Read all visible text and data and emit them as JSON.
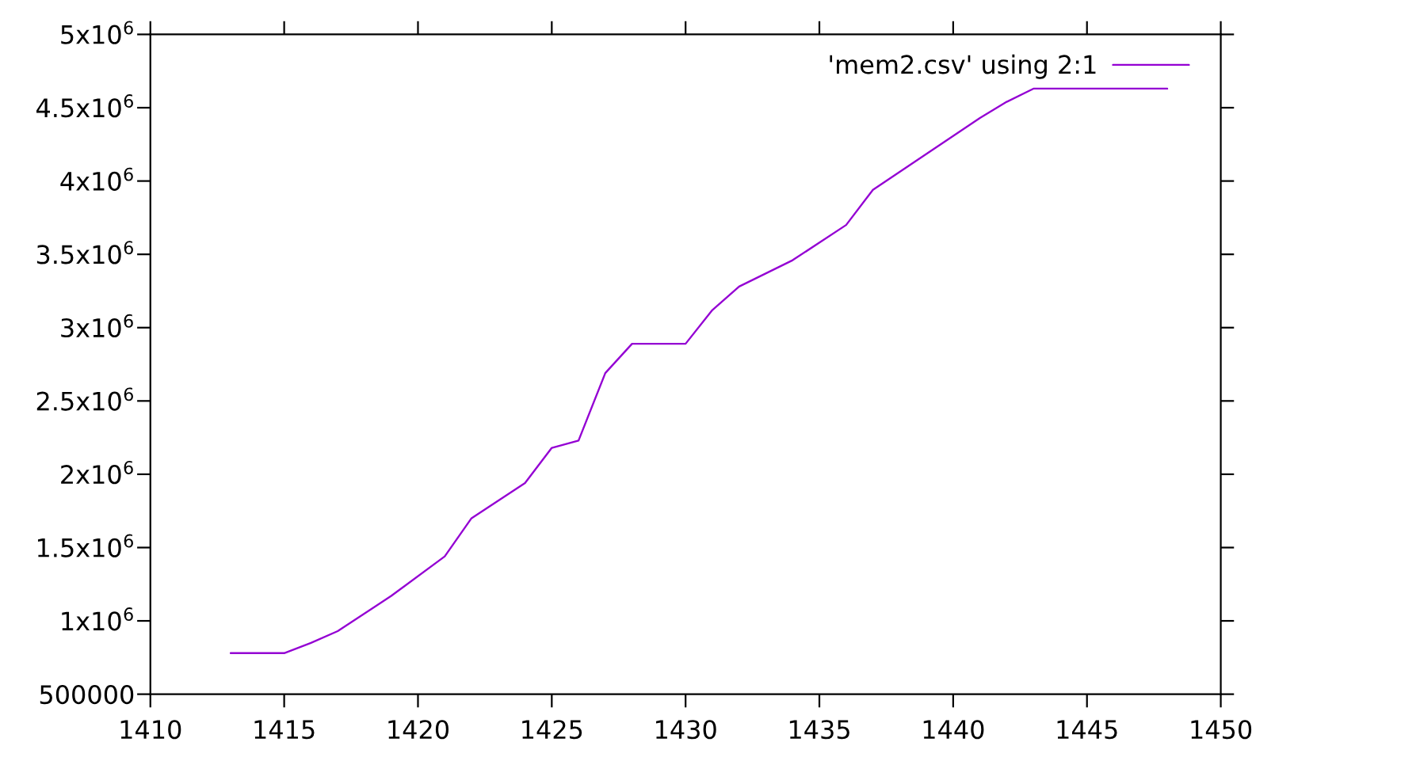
{
  "chart_data": {
    "type": "line",
    "x": [
      1413,
      1415,
      1416,
      1417,
      1419,
      1421,
      1422,
      1424,
      1425,
      1426,
      1427,
      1428,
      1430,
      1431,
      1432,
      1434,
      1436,
      1437,
      1441,
      1442,
      1443,
      1448
    ],
    "series": [
      {
        "name": "'mem2.csv' using 2:1",
        "color": "#9400d3",
        "values": [
          780000,
          780000,
          850000,
          930000,
          1170000,
          1440000,
          1700000,
          1940000,
          2180000,
          2230000,
          2690000,
          2890000,
          2890000,
          3120000,
          3280000,
          3460000,
          3700000,
          3940000,
          4430000,
          4540000,
          4630000,
          4630000
        ]
      }
    ],
    "xlim": [
      1410,
      1450
    ],
    "xticks": [
      1410,
      1415,
      1420,
      1425,
      1430,
      1435,
      1440,
      1445,
      1450
    ],
    "ylim": [
      500000,
      5000000
    ],
    "yticks": [
      500000,
      {
        "value": 1000000,
        "label": "1x10$^{6}$"
      },
      {
        "value": 1500000,
        "label": "1.5x10$^{6}$"
      },
      {
        "value": 2000000,
        "label": "2x10$^{6}$"
      },
      {
        "value": 2500000,
        "label": "2.5x10$^{6}$"
      },
      {
        "value": 3000000,
        "label": "3x10$^{6}$"
      },
      {
        "value": 3500000,
        "label": "3.5x10$^{6}$"
      },
      {
        "value": 4000000,
        "label": "4x10$^{6}$"
      },
      {
        "value": 4500000,
        "label": "4.5x10$^{6}$"
      },
      {
        "value": 5000000,
        "label": "5x10$^{6}$"
      }
    ],
    "legend": "top right",
    "line_style": "solid"
  }
}
